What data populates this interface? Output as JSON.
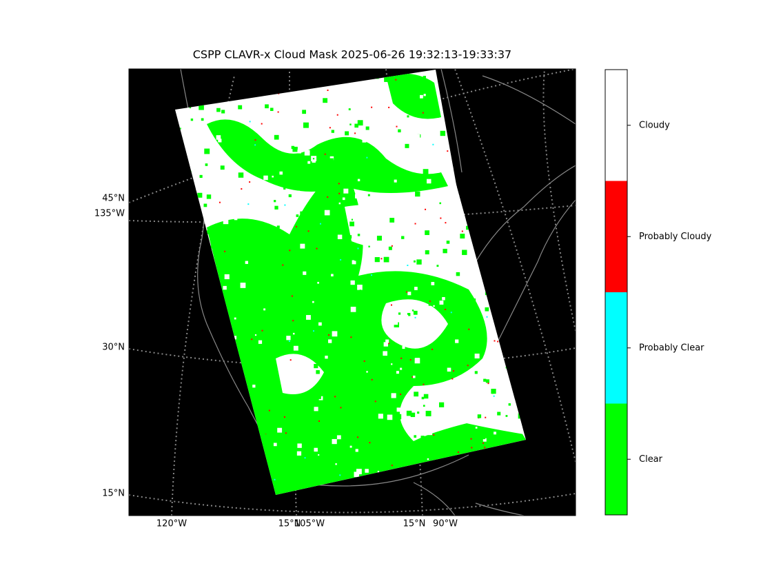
{
  "title": "CSPP CLAVR-x Cloud Mask 2025-06-26 19:32:13-19:33:37",
  "map": {
    "lat_labels": [
      "45°N",
      "30°N",
      "15°N"
    ],
    "lon_labels_left": [
      "135°W"
    ],
    "lon_labels_bottom": [
      "120°W",
      "15°N",
      "105°W",
      "15°N",
      "90°W"
    ]
  },
  "legend": {
    "items": [
      {
        "label": "Cloudy",
        "color": "#ffffff"
      },
      {
        "label": "Probably Cloudy",
        "color": "#ff0000"
      },
      {
        "label": "Probably Clear",
        "color": "#00ffff"
      },
      {
        "label": "Clear",
        "color": "#00ff00"
      }
    ]
  }
}
